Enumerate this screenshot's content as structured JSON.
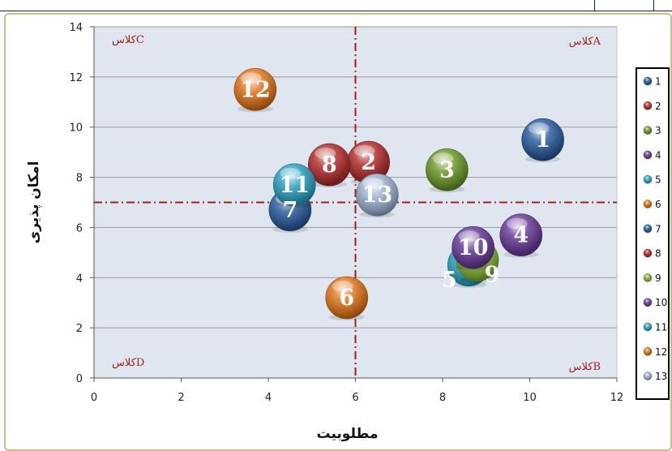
{
  "chart_data": {
    "type": "scatter",
    "xlabel": "مطلوبیت",
    "ylabel": "امکان پذیری",
    "xlim": [
      0,
      12
    ],
    "ylim": [
      0,
      14
    ],
    "xticks": [
      "0",
      "2",
      "4",
      "6",
      "8",
      "10",
      "12"
    ],
    "yticks": [
      "0",
      "2",
      "4",
      "6",
      "8",
      "10",
      "12",
      "14"
    ],
    "grid": "horizontal",
    "divider_x": 6,
    "divider_y": 7,
    "quadrant_labels": [
      {
        "label": "کلاسA",
        "corner": "top-right"
      },
      {
        "label": "کلاسC",
        "corner": "top-left"
      },
      {
        "label": "کلاسD",
        "corner": "bottom-left"
      },
      {
        "label": "کلاسB",
        "corner": "bottom-right"
      }
    ],
    "legend_position": "right",
    "series": [
      {
        "name": "1",
        "x": 10.3,
        "y": 9.5,
        "color": "#2e5f9e"
      },
      {
        "name": "2",
        "x": 6.3,
        "y": 8.6,
        "color": "#b23030"
      },
      {
        "name": "3",
        "x": 8.1,
        "y": 8.3,
        "color": "#6f9a2c"
      },
      {
        "name": "4",
        "x": 9.8,
        "y": 5.7,
        "color": "#6a3f9a"
      },
      {
        "name": "5",
        "x": 8.6,
        "y": 4.5,
        "color": "#2fa2c2"
      },
      {
        "name": "6",
        "x": 5.8,
        "y": 3.2,
        "color": "#e0781f"
      },
      {
        "name": "7",
        "x": 4.5,
        "y": 6.7,
        "color": "#2e5f9e"
      },
      {
        "name": "8",
        "x": 5.4,
        "y": 8.5,
        "color": "#b23030"
      },
      {
        "name": "9",
        "x": 8.8,
        "y": 4.7,
        "color": "#86b83a"
      },
      {
        "name": "10",
        "x": 8.7,
        "y": 5.2,
        "color": "#6a3f9a"
      },
      {
        "name": "11",
        "x": 4.6,
        "y": 7.7,
        "color": "#2fa2c2"
      },
      {
        "name": "12",
        "x": 3.7,
        "y": 11.5,
        "color": "#e0781f"
      },
      {
        "name": "13",
        "x": 6.5,
        "y": 7.3,
        "color": "#9fb2cf"
      }
    ],
    "point_labels": [
      {
        "text": "1",
        "series": "1"
      },
      {
        "text": "2",
        "series": "2"
      },
      {
        "text": "3",
        "series": "3"
      },
      {
        "text": "4",
        "series": "4"
      },
      {
        "text": "5",
        "series": "5"
      },
      {
        "text": "6",
        "series": "6"
      },
      {
        "text": "7",
        "series": "7"
      },
      {
        "text": "8",
        "series": "8"
      },
      {
        "text": "9",
        "series": "9"
      },
      {
        "text": "10",
        "series": "10"
      },
      {
        "text": "11",
        "series": "11"
      },
      {
        "text": "12",
        "series": "12"
      },
      {
        "text": "13",
        "series": "13"
      }
    ]
  },
  "colors": {
    "plot_background": "#dfe6f0",
    "gridline": "#9a9a9a",
    "divider": "#a01e1e",
    "quadrant_text": "#a01e1e"
  }
}
